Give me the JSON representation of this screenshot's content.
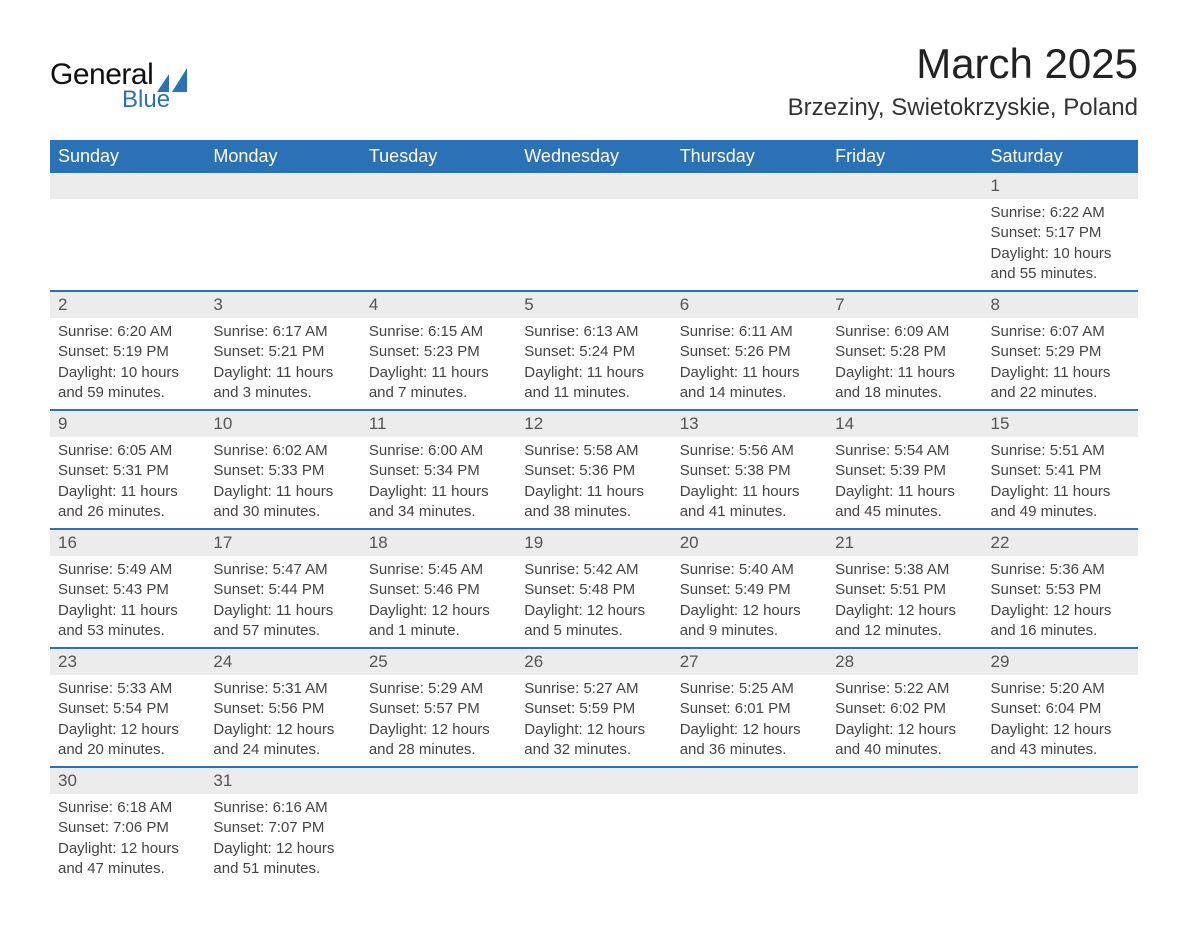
{
  "logo": {
    "text1": "General",
    "text2": "Blue",
    "accent_color": "#2a72b5"
  },
  "title": "March 2025",
  "location": "Brzeziny, Swietokrzyskie, Poland",
  "colors": {
    "header_bg": "#2a72b5",
    "header_text": "#ffffff",
    "daynum_bg": "#ececec",
    "border": "#2a72b5",
    "body_text": "#444444"
  },
  "weekdays": [
    "Sunday",
    "Monday",
    "Tuesday",
    "Wednesday",
    "Thursday",
    "Friday",
    "Saturday"
  ],
  "weeks": [
    [
      null,
      null,
      null,
      null,
      null,
      null,
      {
        "n": "1",
        "sr": "6:22 AM",
        "ss": "5:17 PM",
        "dl": "10 hours and 55 minutes."
      }
    ],
    [
      {
        "n": "2",
        "sr": "6:20 AM",
        "ss": "5:19 PM",
        "dl": "10 hours and 59 minutes."
      },
      {
        "n": "3",
        "sr": "6:17 AM",
        "ss": "5:21 PM",
        "dl": "11 hours and 3 minutes."
      },
      {
        "n": "4",
        "sr": "6:15 AM",
        "ss": "5:23 PM",
        "dl": "11 hours and 7 minutes."
      },
      {
        "n": "5",
        "sr": "6:13 AM",
        "ss": "5:24 PM",
        "dl": "11 hours and 11 minutes."
      },
      {
        "n": "6",
        "sr": "6:11 AM",
        "ss": "5:26 PM",
        "dl": "11 hours and 14 minutes."
      },
      {
        "n": "7",
        "sr": "6:09 AM",
        "ss": "5:28 PM",
        "dl": "11 hours and 18 minutes."
      },
      {
        "n": "8",
        "sr": "6:07 AM",
        "ss": "5:29 PM",
        "dl": "11 hours and 22 minutes."
      }
    ],
    [
      {
        "n": "9",
        "sr": "6:05 AM",
        "ss": "5:31 PM",
        "dl": "11 hours and 26 minutes."
      },
      {
        "n": "10",
        "sr": "6:02 AM",
        "ss": "5:33 PM",
        "dl": "11 hours and 30 minutes."
      },
      {
        "n": "11",
        "sr": "6:00 AM",
        "ss": "5:34 PM",
        "dl": "11 hours and 34 minutes."
      },
      {
        "n": "12",
        "sr": "5:58 AM",
        "ss": "5:36 PM",
        "dl": "11 hours and 38 minutes."
      },
      {
        "n": "13",
        "sr": "5:56 AM",
        "ss": "5:38 PM",
        "dl": "11 hours and 41 minutes."
      },
      {
        "n": "14",
        "sr": "5:54 AM",
        "ss": "5:39 PM",
        "dl": "11 hours and 45 minutes."
      },
      {
        "n": "15",
        "sr": "5:51 AM",
        "ss": "5:41 PM",
        "dl": "11 hours and 49 minutes."
      }
    ],
    [
      {
        "n": "16",
        "sr": "5:49 AM",
        "ss": "5:43 PM",
        "dl": "11 hours and 53 minutes."
      },
      {
        "n": "17",
        "sr": "5:47 AM",
        "ss": "5:44 PM",
        "dl": "11 hours and 57 minutes."
      },
      {
        "n": "18",
        "sr": "5:45 AM",
        "ss": "5:46 PM",
        "dl": "12 hours and 1 minute."
      },
      {
        "n": "19",
        "sr": "5:42 AM",
        "ss": "5:48 PM",
        "dl": "12 hours and 5 minutes."
      },
      {
        "n": "20",
        "sr": "5:40 AM",
        "ss": "5:49 PM",
        "dl": "12 hours and 9 minutes."
      },
      {
        "n": "21",
        "sr": "5:38 AM",
        "ss": "5:51 PM",
        "dl": "12 hours and 12 minutes."
      },
      {
        "n": "22",
        "sr": "5:36 AM",
        "ss": "5:53 PM",
        "dl": "12 hours and 16 minutes."
      }
    ],
    [
      {
        "n": "23",
        "sr": "5:33 AM",
        "ss": "5:54 PM",
        "dl": "12 hours and 20 minutes."
      },
      {
        "n": "24",
        "sr": "5:31 AM",
        "ss": "5:56 PM",
        "dl": "12 hours and 24 minutes."
      },
      {
        "n": "25",
        "sr": "5:29 AM",
        "ss": "5:57 PM",
        "dl": "12 hours and 28 minutes."
      },
      {
        "n": "26",
        "sr": "5:27 AM",
        "ss": "5:59 PM",
        "dl": "12 hours and 32 minutes."
      },
      {
        "n": "27",
        "sr": "5:25 AM",
        "ss": "6:01 PM",
        "dl": "12 hours and 36 minutes."
      },
      {
        "n": "28",
        "sr": "5:22 AM",
        "ss": "6:02 PM",
        "dl": "12 hours and 40 minutes."
      },
      {
        "n": "29",
        "sr": "5:20 AM",
        "ss": "6:04 PM",
        "dl": "12 hours and 43 minutes."
      }
    ],
    [
      {
        "n": "30",
        "sr": "6:18 AM",
        "ss": "7:06 PM",
        "dl": "12 hours and 47 minutes."
      },
      {
        "n": "31",
        "sr": "6:16 AM",
        "ss": "7:07 PM",
        "dl": "12 hours and 51 minutes."
      },
      null,
      null,
      null,
      null,
      null
    ]
  ],
  "labels": {
    "sunrise": "Sunrise: ",
    "sunset": "Sunset: ",
    "daylight": "Daylight: "
  }
}
